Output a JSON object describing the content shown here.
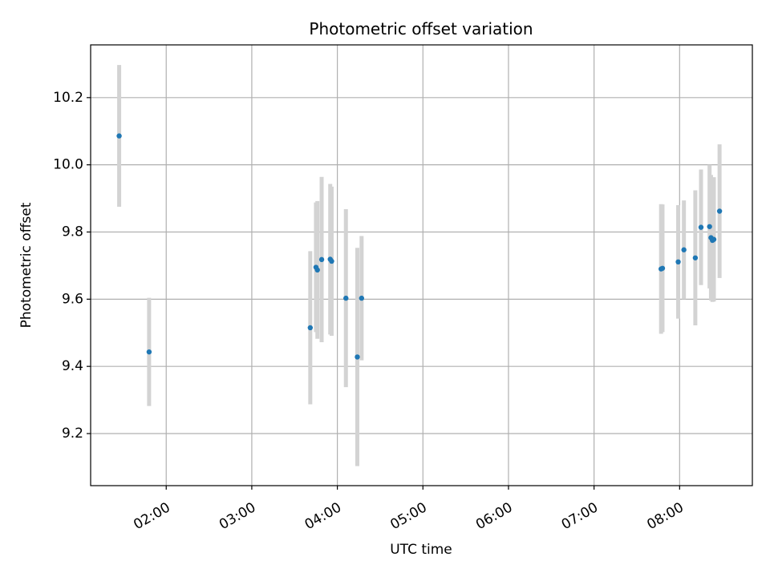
{
  "chart_data": {
    "type": "scatter",
    "title": "Photometric offset variation",
    "xlabel": "UTC time",
    "ylabel": "Photometric offset",
    "x_axis_type": "time",
    "xlim": [
      "01:07",
      "08:51"
    ],
    "ylim": [
      9.045,
      10.357
    ],
    "x_ticks": [
      "02:00",
      "03:00",
      "04:00",
      "05:00",
      "06:00",
      "07:00",
      "08:00"
    ],
    "y_ticks": [
      "9.2",
      "9.4",
      "9.6",
      "9.8",
      "10.0",
      "10.2"
    ],
    "grid": true,
    "marker_color": "#1f77b4",
    "errorbar_color": "#d3d3d3",
    "points": [
      {
        "x": "01:27",
        "y": 10.086,
        "y_low": 9.875,
        "y_high": 10.297
      },
      {
        "x": "01:48",
        "y": 9.443,
        "y_low": 9.282,
        "y_high": 9.604
      },
      {
        "x": "03:41",
        "y": 9.515,
        "y_low": 9.287,
        "y_high": 9.743
      },
      {
        "x": "03:45",
        "y": 9.695,
        "y_low": 9.502,
        "y_high": 9.888
      },
      {
        "x": "03:46",
        "y": 9.687,
        "y_low": 9.482,
        "y_high": 9.892
      },
      {
        "x": "03:49",
        "y": 9.718,
        "y_low": 9.472,
        "y_high": 9.964
      },
      {
        "x": "03:55",
        "y": 9.719,
        "y_low": 9.495,
        "y_high": 9.943
      },
      {
        "x": "03:56",
        "y": 9.713,
        "y_low": 9.491,
        "y_high": 9.935
      },
      {
        "x": "04:06",
        "y": 9.603,
        "y_low": 9.338,
        "y_high": 9.868
      },
      {
        "x": "04:14",
        "y": 9.428,
        "y_low": 9.103,
        "y_high": 9.753
      },
      {
        "x": "04:17",
        "y": 9.603,
        "y_low": 9.418,
        "y_high": 9.788
      },
      {
        "x": "07:47",
        "y": 9.69,
        "y_low": 9.497,
        "y_high": 9.883
      },
      {
        "x": "07:48",
        "y": 9.692,
        "y_low": 9.502,
        "y_high": 9.882
      },
      {
        "x": "07:59",
        "y": 9.711,
        "y_low": 9.542,
        "y_high": 9.88
      },
      {
        "x": "08:03",
        "y": 9.747,
        "y_low": 9.6,
        "y_high": 9.894
      },
      {
        "x": "08:11",
        "y": 9.723,
        "y_low": 9.522,
        "y_high": 9.924
      },
      {
        "x": "08:15",
        "y": 9.814,
        "y_low": 9.642,
        "y_high": 9.986
      },
      {
        "x": "08:21",
        "y": 9.816,
        "y_low": 9.632,
        "y_high": 10.0
      },
      {
        "x": "08:22",
        "y": 9.783,
        "y_low": 9.596,
        "y_high": 9.97
      },
      {
        "x": "08:23",
        "y": 9.775,
        "y_low": 9.592,
        "y_high": 9.958
      },
      {
        "x": "08:24",
        "y": 9.778,
        "y_low": 9.593,
        "y_high": 9.963
      },
      {
        "x": "08:28",
        "y": 9.862,
        "y_low": 9.663,
        "y_high": 10.061
      }
    ]
  }
}
